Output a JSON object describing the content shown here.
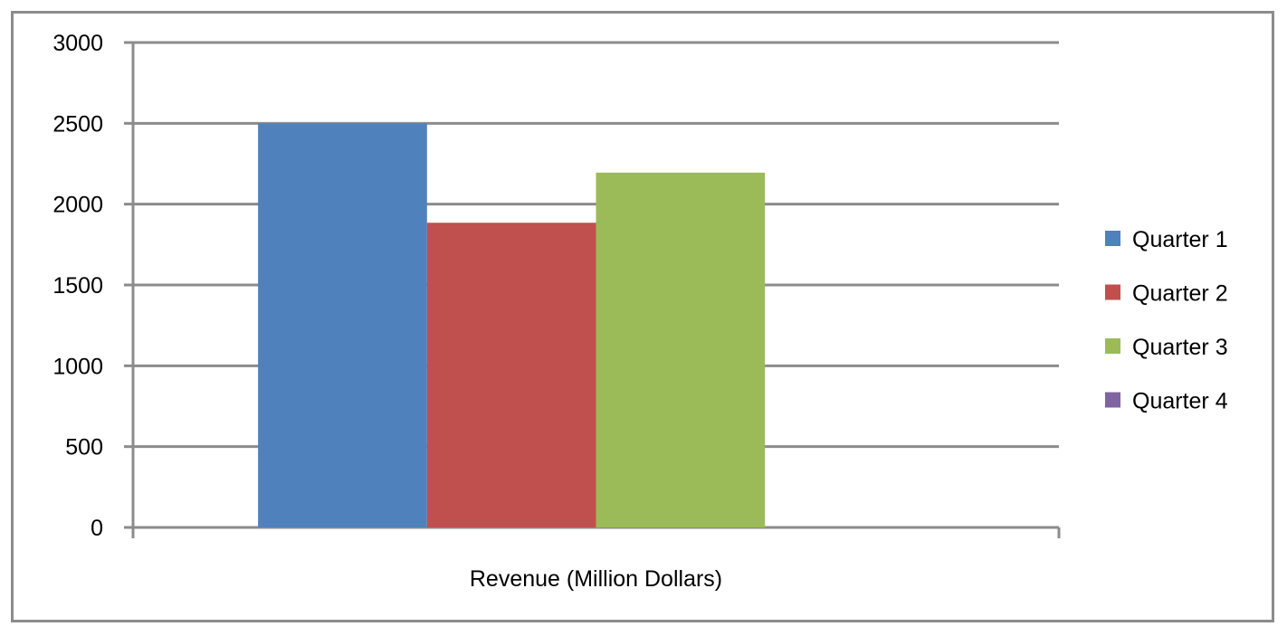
{
  "chart_data": {
    "type": "bar",
    "categories": [
      "Revenue (Million Dollars)"
    ],
    "xlabel": "",
    "ylabel": "",
    "title": "",
    "ylim": [
      0,
      3000
    ],
    "yticks": [
      0,
      500,
      1000,
      1500,
      2000,
      2500,
      3000
    ],
    "grid": true,
    "legend_position": "right",
    "series": [
      {
        "name": "Quarter 1",
        "values": [
          2500
        ],
        "color": "#4f81bd"
      },
      {
        "name": "Quarter 2",
        "values": [
          1885
        ],
        "color": "#c0504d"
      },
      {
        "name": "Quarter 3",
        "values": [
          2195
        ],
        "color": "#9bbb59"
      },
      {
        "name": "Quarter 4",
        "values": [
          0
        ],
        "color": "#8064a2"
      }
    ]
  }
}
